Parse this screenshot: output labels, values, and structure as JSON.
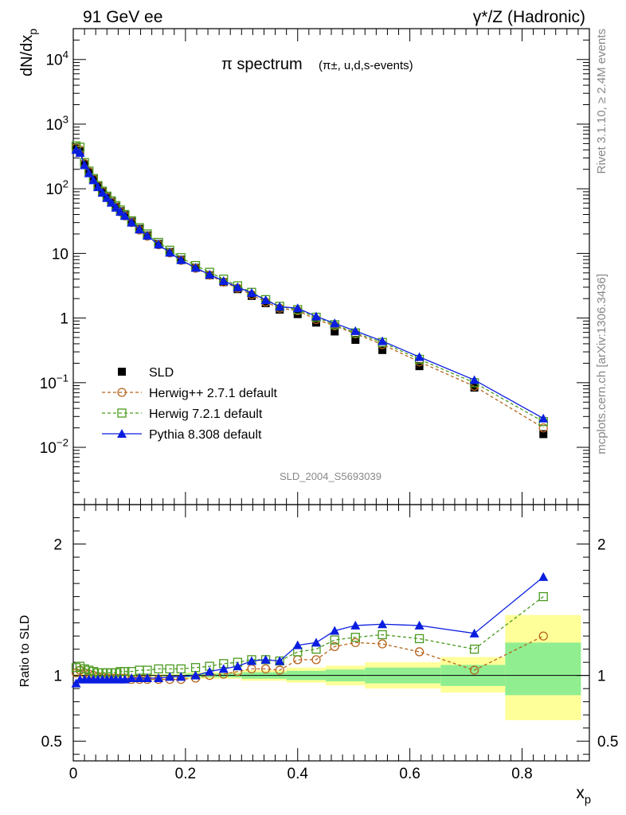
{
  "header": {
    "left": "91 GeV ee",
    "right": "γ*/Z (Hadronic)"
  },
  "side_labels": {
    "rivet": "Rivet 3.1.10, ≥ 2.4M events",
    "mcplots": "mcplots.cern.ch [arXiv:1306.3436]"
  },
  "watermark": "SLD_2004_S5693039",
  "chart_data": [
    {
      "type": "scatter",
      "panel": "main",
      "title": "π spectrum",
      "subtitle": "(π±, u,d,s-events)",
      "xlabel": "x_p",
      "ylabel": "dN/dx_p",
      "xlim": [
        0,
        0.92
      ],
      "ylim": [
        0.0013,
        30000
      ],
      "yscale": "log",
      "yticks": [
        {
          "value": 10000,
          "label": "10^4"
        },
        {
          "value": 1000,
          "label": "10^3"
        },
        {
          "value": 100,
          "label": "10^2"
        },
        {
          "value": 10,
          "label": "10"
        },
        {
          "value": 1,
          "label": "1"
        },
        {
          "value": 0.1,
          "label": "10^-1"
        },
        {
          "value": 0.01,
          "label": "10^-2"
        }
      ],
      "legend": {
        "placement": "bottom-left",
        "entries": [
          {
            "name": "SLD",
            "color": "#000000",
            "marker": "filled-square",
            "line": "none"
          },
          {
            "name": "Herwig++ 2.7.1 default",
            "color": "#b5651d",
            "marker": "open-circle",
            "line": "dashed"
          },
          {
            "name": "Herwig 7.2.1 default",
            "color": "#4a9a1e",
            "marker": "open-square",
            "line": "dashed"
          },
          {
            "name": "Pythia 8.308 default",
            "color": "#0a1ee0",
            "marker": "filled-triangle",
            "line": "solid"
          }
        ]
      },
      "x": [
        0.005,
        0.012,
        0.02,
        0.028,
        0.036,
        0.044,
        0.052,
        0.06,
        0.068,
        0.076,
        0.084,
        0.092,
        0.104,
        0.118,
        0.132,
        0.152,
        0.172,
        0.192,
        0.218,
        0.243,
        0.268,
        0.293,
        0.318,
        0.343,
        0.368,
        0.4,
        0.433,
        0.466,
        0.503,
        0.551,
        0.617,
        0.715,
        0.838
      ],
      "series": [
        {
          "name": "SLD",
          "color": "#000000",
          "values": [
            420,
            380,
            240,
            180,
            140,
            110,
            90,
            75,
            63,
            53,
            45,
            39,
            31,
            24,
            19,
            14,
            10.5,
            8.0,
            6.0,
            4.6,
            3.6,
            2.8,
            2.2,
            1.7,
            1.35,
            1.15,
            0.85,
            0.62,
            0.46,
            0.32,
            0.18,
            0.084,
            0.016
          ]
        },
        {
          "name": "Herwig++ 2.7.1 default",
          "color": "#b5651d",
          "values": [
            430,
            400,
            245,
            183,
            141,
            110,
            90,
            74,
            62,
            52,
            44,
            38,
            30,
            23,
            18.5,
            13.6,
            10.2,
            7.8,
            5.9,
            4.6,
            3.6,
            2.9,
            2.3,
            1.77,
            1.42,
            1.3,
            0.95,
            0.76,
            0.57,
            0.39,
            0.21,
            0.088,
            0.02
          ]
        },
        {
          "name": "Herwig 7.2.1 default",
          "color": "#4a9a1e",
          "values": [
            460,
            440,
            255,
            188,
            144,
            112,
            92,
            77,
            65,
            55,
            47,
            40,
            32,
            25,
            20,
            14.8,
            11.2,
            8.6,
            6.5,
            5.1,
            4.0,
            3.15,
            2.5,
            1.93,
            1.52,
            1.35,
            1.03,
            0.79,
            0.59,
            0.42,
            0.23,
            0.1,
            0.025
          ]
        },
        {
          "name": "Pythia 8.308 default",
          "color": "#0a1ee0",
          "values": [
            400,
            360,
            232,
            174,
            136,
            106,
            87,
            72,
            61,
            51,
            44,
            38,
            30,
            23.5,
            18.8,
            13.7,
            10.3,
            7.9,
            6.0,
            4.7,
            3.75,
            3.0,
            2.45,
            1.9,
            1.5,
            1.42,
            1.06,
            0.83,
            0.63,
            0.44,
            0.25,
            0.11,
            0.028
          ]
        }
      ]
    },
    {
      "type": "scatter",
      "panel": "ratio",
      "ylabel": "Ratio to SLD",
      "xlabel": "x_p",
      "xlim": [
        0,
        0.92
      ],
      "ylim": [
        0.35,
        2.3
      ],
      "yticks": [
        {
          "value": 0.5,
          "label": "0.5"
        },
        {
          "value": 1,
          "label": "1"
        },
        {
          "value": 2,
          "label": "2"
        }
      ],
      "xticks": [
        {
          "value": 0,
          "label": "0"
        },
        {
          "value": 0.2,
          "label": "0.2"
        },
        {
          "value": 0.4,
          "label": "0.4"
        },
        {
          "value": 0.6,
          "label": "0.6"
        },
        {
          "value": 0.8,
          "label": "0.8"
        }
      ],
      "bands": {
        "inner_color": "#90ee90",
        "outer_color": "#ffff99",
        "bins": [
          {
            "x": [
              0.0,
              0.2
            ],
            "inner": [
              0.995,
              1.005
            ],
            "outer": [
              0.99,
              1.01
            ]
          },
          {
            "x": [
              0.2,
              0.3
            ],
            "inner": [
              0.985,
              1.015
            ],
            "outer": [
              0.975,
              1.025
            ]
          },
          {
            "x": [
              0.3,
              0.38
            ],
            "inner": [
              0.975,
              1.025
            ],
            "outer": [
              0.96,
              1.04
            ]
          },
          {
            "x": [
              0.38,
              0.45
            ],
            "inner": [
              0.965,
              1.035
            ],
            "outer": [
              0.945,
              1.06
            ]
          },
          {
            "x": [
              0.45,
              0.52
            ],
            "inner": [
              0.955,
              1.045
            ],
            "outer": [
              0.925,
              1.075
            ]
          },
          {
            "x": [
              0.52,
              0.655
            ],
            "inner": [
              0.94,
              1.06
            ],
            "outer": [
              0.9,
              1.1
            ]
          },
          {
            "x": [
              0.655,
              0.77
            ],
            "inner": [
              0.92,
              1.08
            ],
            "outer": [
              0.87,
              1.14
            ]
          },
          {
            "x": [
              0.77,
              0.905
            ],
            "inner": [
              0.85,
              1.25
            ],
            "outer": [
              0.66,
              1.46
            ]
          }
        ]
      },
      "x": [
        0.005,
        0.012,
        0.02,
        0.028,
        0.036,
        0.044,
        0.052,
        0.06,
        0.068,
        0.076,
        0.084,
        0.092,
        0.104,
        0.118,
        0.132,
        0.152,
        0.172,
        0.192,
        0.218,
        0.243,
        0.268,
        0.293,
        0.318,
        0.343,
        0.368,
        0.4,
        0.433,
        0.466,
        0.503,
        0.551,
        0.617,
        0.715,
        0.838
      ],
      "series": [
        {
          "name": "Herwig++ 2.7.1 default",
          "color": "#b5651d",
          "values": [
            1.02,
            1.04,
            1.02,
            1.01,
            1.0,
            0.99,
            0.99,
            0.98,
            0.98,
            0.98,
            0.98,
            0.98,
            0.97,
            0.97,
            0.97,
            0.97,
            0.97,
            0.97,
            0.98,
            1.0,
            1.01,
            1.03,
            1.05,
            1.05,
            1.04,
            1.12,
            1.12,
            1.22,
            1.25,
            1.24,
            1.18,
            1.04,
            1.3
          ]
        },
        {
          "name": "Herwig 7.2.1 default",
          "color": "#4a9a1e",
          "values": [
            1.06,
            1.07,
            1.05,
            1.04,
            1.03,
            1.02,
            1.02,
            1.02,
            1.02,
            1.02,
            1.03,
            1.03,
            1.03,
            1.04,
            1.04,
            1.05,
            1.05,
            1.05,
            1.06,
            1.07,
            1.09,
            1.1,
            1.12,
            1.12,
            1.11,
            1.18,
            1.2,
            1.27,
            1.29,
            1.31,
            1.28,
            1.2,
            1.6
          ]
        },
        {
          "name": "Pythia 8.308 default",
          "color": "#0a1ee0",
          "values": [
            0.94,
            0.97,
            0.97,
            0.97,
            0.97,
            0.97,
            0.97,
            0.97,
            0.97,
            0.97,
            0.97,
            0.97,
            0.98,
            0.98,
            0.98,
            0.98,
            0.99,
            0.99,
            1.0,
            1.03,
            1.05,
            1.07,
            1.11,
            1.12,
            1.11,
            1.23,
            1.25,
            1.34,
            1.38,
            1.39,
            1.38,
            1.32,
            1.75
          ]
        }
      ]
    }
  ]
}
